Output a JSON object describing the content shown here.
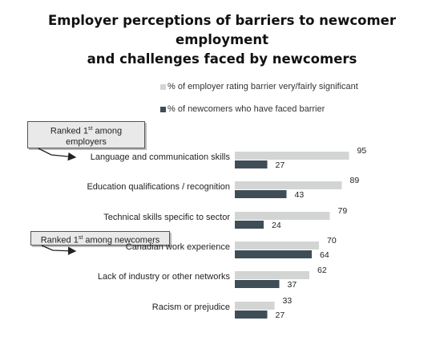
{
  "title_line1": "Employer perceptions of barriers to newcomer employment",
  "title_line2": "and challenges faced by newcomers",
  "legend": [
    {
      "label": "% of employer rating barrier very/fairly significant",
      "color": "#d3d5d4"
    },
    {
      "label": "% of newcomers who have faced barrier",
      "color": "#3f4d57"
    }
  ],
  "callouts": {
    "employers": {
      "prefix": "Ranked 1",
      "sup": "st",
      "suffix": " among",
      "line2": "employers"
    },
    "newcomers": {
      "prefix": "Ranked 1",
      "sup": "st",
      "suffix": " among newcomers"
    }
  },
  "chart_data": {
    "type": "bar",
    "orientation": "horizontal",
    "title": "Employer perceptions of barriers to newcomer employment and challenges faced by newcomers",
    "categories": [
      "Language and communication skills",
      "Education qualifications / recognition",
      "Technical skills specific to sector",
      "Canadian work experience",
      "Lack of industry or other networks",
      "Racism or prejudice"
    ],
    "series": [
      {
        "name": "% of employer rating barrier very/fairly significant",
        "color": "#d3d5d4",
        "values": [
          95,
          89,
          79,
          70,
          62,
          33
        ]
      },
      {
        "name": "% of newcomers who have faced barrier",
        "color": "#3f4d57",
        "values": [
          27,
          43,
          24,
          64,
          37,
          27
        ]
      }
    ],
    "xlim": [
      0,
      100
    ],
    "grid": false,
    "legend_position": "top-right"
  }
}
